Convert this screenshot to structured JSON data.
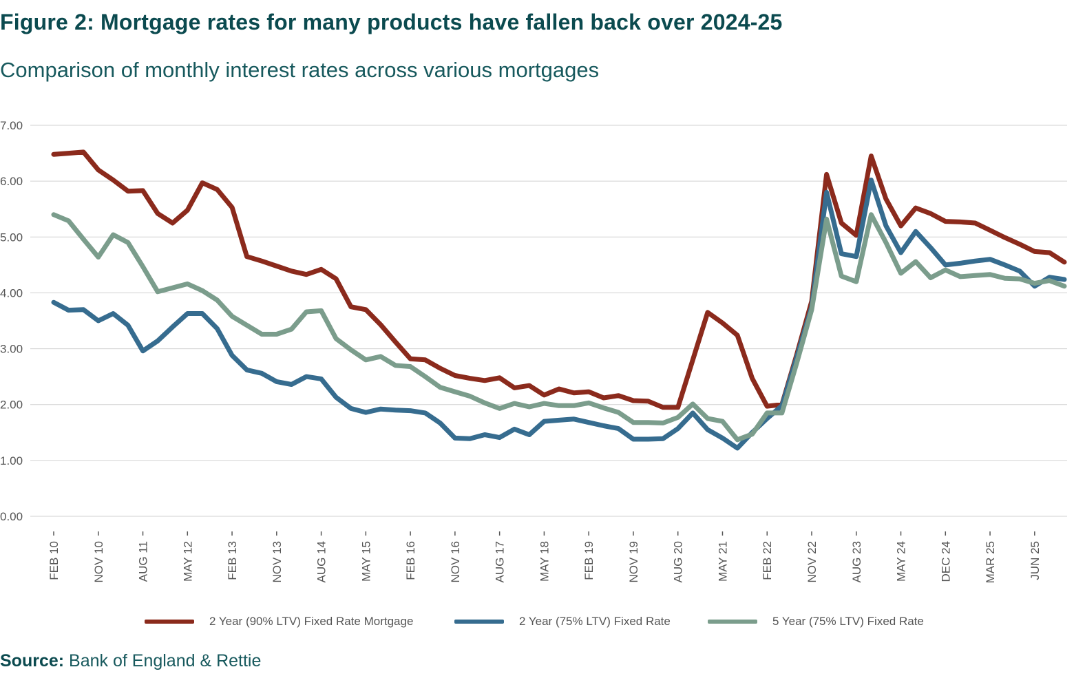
{
  "header": {
    "title": "Figure 2: Mortgage rates for many products have fallen back over 2024-25",
    "subtitle": "Comparison of monthly interest rates across various mortgages"
  },
  "source": {
    "label": "Source:",
    "text": "Bank of England & Rettie"
  },
  "colors": {
    "series_90ltv_2yr": "#8b2a1c",
    "series_75ltv_2yr": "#366c8f",
    "series_75ltv_5yr": "#7b9d8c",
    "gridline": "#d0d0d0",
    "tick_text": "#555555",
    "title": "#0b4a4f"
  },
  "chart_data": {
    "type": "line",
    "title": "Figure 2: Mortgage rates for many products have fallen back over 2024-25",
    "subtitle": "Comparison of monthly interest rates across various mortgages",
    "xlabel": "",
    "ylabel": "",
    "ylim": [
      0,
      7
    ],
    "y_ticks": [
      "0.00",
      "1.00",
      "2.00",
      "3.00",
      "4.00",
      "5.00",
      "6.00",
      "7.00"
    ],
    "x_ticks": [
      "FEB 10",
      "NOV 10",
      "AUG 11",
      "MAY 12",
      "FEB 13",
      "NOV 13",
      "AUG 14",
      "MAY 15",
      "FEB 16",
      "NOV 16",
      "AUG 17",
      "MAY 18",
      "FEB 19",
      "NOV 19",
      "AUG 20",
      "MAY 21",
      "FEB 22",
      "NOV 22",
      "AUG 23",
      "MAY 24",
      "DEC 24",
      "MAR 25",
      "JUN 25"
    ],
    "x_tick_positions": [
      0,
      3,
      6,
      9,
      12,
      15,
      18,
      21,
      24,
      27,
      30,
      33,
      36,
      39,
      42,
      45,
      48,
      51,
      54,
      57,
      60,
      63,
      66
    ],
    "grid": true,
    "legend_position": "bottom",
    "series": [
      {
        "name": "2 Year (90% LTV) Fixed Rate Mortgage",
        "color": "#8b2a1c",
        "values": [
          6.48,
          6.5,
          6.52,
          6.2,
          6.02,
          5.82,
          5.83,
          5.42,
          5.25,
          5.48,
          5.97,
          5.85,
          5.53,
          4.65,
          4.57,
          4.48,
          4.39,
          4.33,
          4.42,
          4.25,
          3.75,
          3.7,
          3.43,
          3.12,
          2.82,
          2.8,
          2.65,
          2.52,
          2.47,
          2.43,
          2.48,
          2.3,
          2.34,
          2.17,
          2.28,
          2.21,
          2.23,
          2.12,
          2.16,
          2.07,
          2.06,
          1.95,
          1.95,
          2.8,
          3.65,
          3.46,
          3.24,
          2.47,
          1.97,
          2.0,
          2.9,
          3.85,
          6.12,
          5.25,
          5.03,
          6.45,
          5.68,
          5.2,
          5.52,
          5.42,
          5.28,
          5.27,
          5.25,
          5.12,
          4.99,
          4.87,
          4.74,
          4.72,
          4.55
        ]
      },
      {
        "name": "2 Year (75% LTV) Fixed Rate",
        "color": "#366c8f",
        "values": [
          3.83,
          3.69,
          3.7,
          3.5,
          3.63,
          3.42,
          2.96,
          3.14,
          3.39,
          3.63,
          3.63,
          3.36,
          2.88,
          2.62,
          2.56,
          2.41,
          2.36,
          2.5,
          2.46,
          2.13,
          1.93,
          1.86,
          1.92,
          1.9,
          1.89,
          1.85,
          1.67,
          1.4,
          1.39,
          1.46,
          1.41,
          1.56,
          1.46,
          1.7,
          1.72,
          1.74,
          1.68,
          1.62,
          1.57,
          1.38,
          1.38,
          1.39,
          1.57,
          1.85,
          1.55,
          1.4,
          1.22,
          1.5,
          1.75,
          1.98,
          2.85,
          3.75,
          5.8,
          4.7,
          4.65,
          6.02,
          5.2,
          4.72,
          5.1,
          4.81,
          4.5,
          4.53,
          4.57,
          4.6,
          4.5,
          4.39,
          4.12,
          4.28,
          4.24
        ]
      },
      {
        "name": "5 Year (75% LTV) Fixed Rate",
        "color": "#7b9d8c",
        "values": [
          5.4,
          5.29,
          4.96,
          4.64,
          5.04,
          4.9,
          4.47,
          4.02,
          4.09,
          4.16,
          4.04,
          3.87,
          3.58,
          3.42,
          3.26,
          3.26,
          3.35,
          3.66,
          3.68,
          3.18,
          2.98,
          2.8,
          2.86,
          2.7,
          2.68,
          2.5,
          2.31,
          2.23,
          2.15,
          2.03,
          1.93,
          2.02,
          1.96,
          2.02,
          1.98,
          1.98,
          2.03,
          1.94,
          1.86,
          1.68,
          1.68,
          1.67,
          1.77,
          2.01,
          1.75,
          1.7,
          1.37,
          1.47,
          1.85,
          1.85,
          2.75,
          3.7,
          5.32,
          4.3,
          4.2,
          5.4,
          4.9,
          4.35,
          4.56,
          4.27,
          4.41,
          4.29,
          4.31,
          4.33,
          4.26,
          4.25,
          4.17,
          4.22,
          4.12
        ]
      }
    ]
  }
}
